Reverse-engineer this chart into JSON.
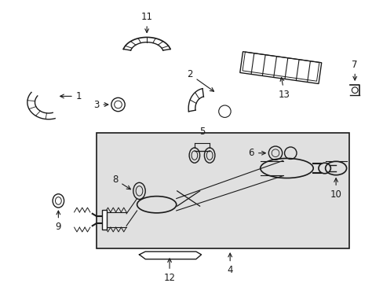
{
  "bg_color": "#ffffff",
  "line_color": "#1a1a1a",
  "gray_fill": "#e0e0e0",
  "figsize": [
    4.89,
    3.6
  ],
  "dpi": 100,
  "label_fs": 8.5
}
